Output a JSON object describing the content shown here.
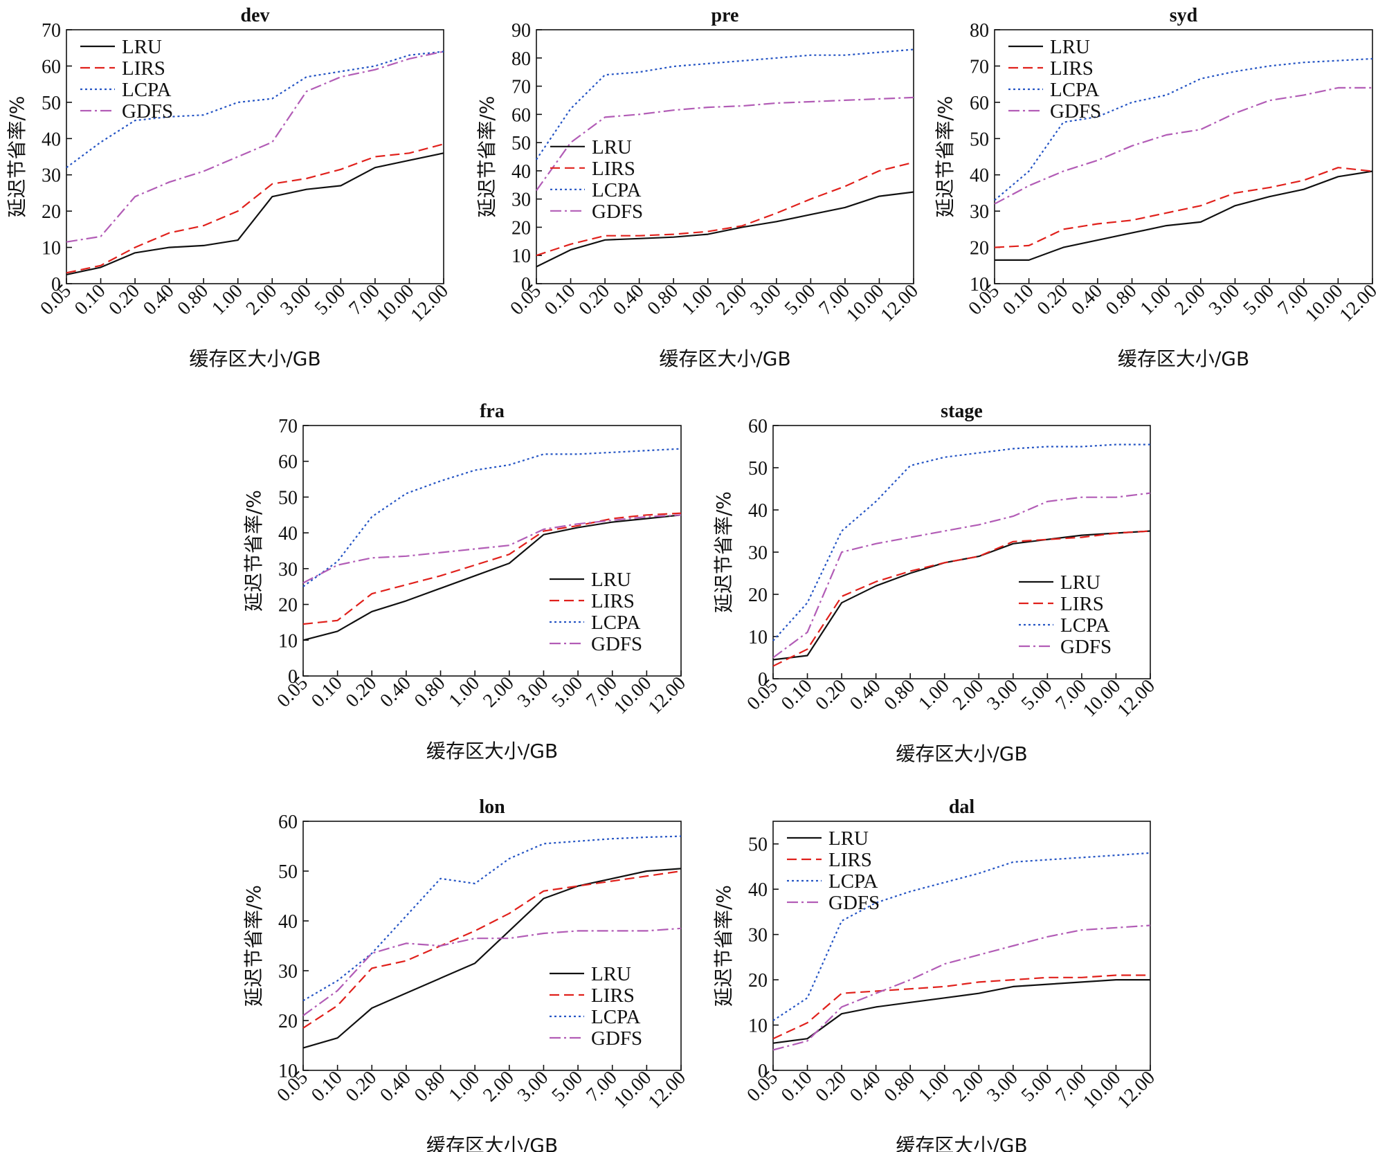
{
  "figure": {
    "x_ticks": [
      "0.05",
      "0.10",
      "0.20",
      "0.40",
      "0.80",
      "1.00",
      "2.00",
      "3.00",
      "5.00",
      "7.00",
      "10.00",
      "12.00"
    ],
    "xlabel": "缓存区大小/GB",
    "ylabel": "延迟节省率/%",
    "colors": {
      "LRU": "#111111",
      "LIRS": "#e0201b",
      "LCPA": "#2454c4",
      "GDFS": "#b25cb6"
    },
    "dash": {
      "LRU": "",
      "LIRS": "14,7",
      "LCPA": "3,4",
      "GDFS": "16,5,3,5"
    }
  },
  "chart_data": [
    {
      "type": "line",
      "title": "dev",
      "xlabel": "缓存区大小/GB",
      "ylabel": "延迟节省率/%",
      "ylim": [
        0,
        70
      ],
      "yticks": [
        "0",
        "10",
        "20",
        "30",
        "40",
        "50",
        "60",
        "70"
      ],
      "legend": "top-left",
      "series": [
        {
          "name": "LRU",
          "values": [
            2.5,
            4.5,
            8.5,
            10,
            10.5,
            12,
            24,
            26,
            27,
            32,
            34,
            36
          ]
        },
        {
          "name": "LIRS",
          "values": [
            3,
            5,
            10,
            14,
            16,
            20,
            27.5,
            29,
            31.5,
            35,
            36,
            38.5
          ]
        },
        {
          "name": "LCPA",
          "values": [
            32,
            39,
            45,
            46,
            46.5,
            50,
            51,
            57,
            58.5,
            60,
            63,
            64
          ]
        },
        {
          "name": "GDFS",
          "values": [
            11.5,
            13,
            24,
            28,
            31,
            35,
            39,
            53,
            57,
            59,
            62,
            64
          ]
        }
      ]
    },
    {
      "type": "line",
      "title": "pre",
      "xlabel": "缓存区大小/GB",
      "ylabel": "延迟节省率/%",
      "ylim": [
        0,
        90
      ],
      "yticks": [
        "0",
        "10",
        "20",
        "30",
        "40",
        "50",
        "60",
        "70",
        "80",
        "90"
      ],
      "legend": "center-left",
      "series": [
        {
          "name": "LRU",
          "values": [
            6,
            12,
            15.5,
            16,
            16.5,
            17.5,
            20,
            22,
            24.5,
            27,
            31,
            32.5
          ]
        },
        {
          "name": "LIRS",
          "values": [
            10,
            14,
            17,
            17,
            17.5,
            18.5,
            20.5,
            25,
            30,
            34.5,
            40,
            43
          ]
        },
        {
          "name": "LCPA",
          "values": [
            44,
            62,
            74,
            75,
            77,
            78,
            79,
            80,
            81,
            81,
            82,
            83
          ]
        },
        {
          "name": "GDFS",
          "values": [
            33,
            50,
            59,
            60,
            61.5,
            62.5,
            63,
            64,
            64.5,
            65,
            65.5,
            66
          ]
        }
      ]
    },
    {
      "type": "line",
      "title": "syd",
      "xlabel": "缓存区大小/GB",
      "ylabel": "延迟节省率/%",
      "ylim": [
        10,
        80
      ],
      "yticks": [
        "10",
        "20",
        "30",
        "40",
        "50",
        "60",
        "70",
        "80"
      ],
      "legend": "top-left",
      "series": [
        {
          "name": "LRU",
          "values": [
            16.5,
            16.5,
            20,
            22,
            24,
            26,
            27,
            31.5,
            34,
            36,
            39.5,
            41
          ]
        },
        {
          "name": "LIRS",
          "values": [
            20,
            20.5,
            25,
            26.5,
            27.5,
            29.5,
            31.5,
            35,
            36.5,
            38.5,
            42,
            41
          ]
        },
        {
          "name": "LCPA",
          "values": [
            33,
            41,
            54.5,
            56,
            60,
            62,
            66.5,
            68.5,
            70,
            71,
            71.5,
            72
          ]
        },
        {
          "name": "GDFS",
          "values": [
            32,
            37,
            41,
            44,
            48,
            51,
            52.5,
            57,
            60.5,
            62,
            64,
            64
          ]
        }
      ]
    },
    {
      "type": "line",
      "title": "fra",
      "xlabel": "缓存区大小/GB",
      "ylabel": "延迟节省率/%",
      "ylim": [
        0,
        70
      ],
      "yticks": [
        "0",
        "10",
        "20",
        "30",
        "40",
        "50",
        "60",
        "70"
      ],
      "legend": "bottom-right",
      "series": [
        {
          "name": "LRU",
          "values": [
            10,
            12.5,
            18,
            21,
            24.5,
            28,
            31.5,
            39.5,
            41.5,
            43,
            44,
            45
          ]
        },
        {
          "name": "LIRS",
          "values": [
            14.5,
            15.5,
            23,
            25.5,
            28,
            31,
            34,
            40.5,
            42,
            44,
            45,
            45.5
          ]
        },
        {
          "name": "LCPA",
          "values": [
            25,
            32,
            44.5,
            51,
            54.5,
            57.5,
            59,
            62,
            62,
            62.5,
            63,
            63.5
          ]
        },
        {
          "name": "GDFS",
          "values": [
            26,
            31,
            33,
            33.5,
            34.5,
            35.5,
            36.5,
            41,
            42.5,
            43.5,
            44.5,
            45
          ]
        }
      ]
    },
    {
      "type": "line",
      "title": "stage",
      "xlabel": "缓存区大小/GB",
      "ylabel": "延迟节省率/%",
      "ylim": [
        0,
        60
      ],
      "yticks": [
        "0",
        "10",
        "20",
        "30",
        "40",
        "50",
        "60"
      ],
      "legend": "bottom-right",
      "series": [
        {
          "name": "LRU",
          "values": [
            4.5,
            5.5,
            18,
            22,
            25,
            27.5,
            29,
            32,
            33,
            34,
            34.5,
            35
          ]
        },
        {
          "name": "LIRS",
          "values": [
            3,
            7,
            19.5,
            23,
            25.5,
            27.5,
            29,
            32.5,
            33,
            33.5,
            34.5,
            35
          ]
        },
        {
          "name": "LCPA",
          "values": [
            9,
            18,
            35,
            42,
            50.5,
            52.5,
            53.5,
            54.5,
            55,
            55,
            55.5,
            55.5
          ]
        },
        {
          "name": "GDFS",
          "values": [
            5,
            11,
            30,
            32,
            33.5,
            35,
            36.5,
            38.5,
            42,
            43,
            43,
            44
          ]
        }
      ]
    },
    {
      "type": "line",
      "title": "lon",
      "xlabel": "缓存区大小/GB",
      "ylabel": "延迟节省率/%",
      "ylim": [
        10,
        60
      ],
      "yticks": [
        "10",
        "20",
        "30",
        "40",
        "50",
        "60"
      ],
      "legend": "bottom-right",
      "series": [
        {
          "name": "LRU",
          "values": [
            14.5,
            16.5,
            22.5,
            25.5,
            28.5,
            31.5,
            38,
            44.5,
            47,
            48.5,
            50,
            50.5
          ]
        },
        {
          "name": "LIRS",
          "values": [
            18.5,
            23,
            30.5,
            32,
            35,
            38,
            41.5,
            46,
            47,
            48,
            49,
            50
          ]
        },
        {
          "name": "LCPA",
          "values": [
            24,
            28,
            33.5,
            41,
            48.5,
            47.5,
            52.5,
            55.5,
            56,
            56.5,
            56.8,
            57
          ]
        },
        {
          "name": "GDFS",
          "values": [
            21,
            26,
            33.5,
            35.5,
            35,
            36.5,
            36.5,
            37.5,
            38,
            38,
            38,
            38.5
          ]
        }
      ]
    },
    {
      "type": "line",
      "title": "dal",
      "xlabel": "缓存区大小/GB",
      "ylabel": "延迟节省率/%",
      "ylim": [
        0,
        55
      ],
      "yticks": [
        "0",
        "10",
        "20",
        "30",
        "40",
        "50"
      ],
      "legend": "top-left",
      "series": [
        {
          "name": "LRU",
          "values": [
            6,
            7,
            12.5,
            14,
            15,
            16,
            17,
            18.5,
            19,
            19.5,
            20,
            20
          ]
        },
        {
          "name": "LIRS",
          "values": [
            7,
            10.5,
            17,
            17.5,
            18,
            18.5,
            19.5,
            20,
            20.5,
            20.5,
            21,
            21
          ]
        },
        {
          "name": "LCPA",
          "values": [
            11,
            16,
            33,
            37,
            39.5,
            41.5,
            43.5,
            46,
            46.5,
            47,
            47.5,
            48
          ]
        },
        {
          "name": "GDFS",
          "values": [
            4.5,
            6.5,
            14,
            17,
            20,
            23.5,
            25.5,
            27.5,
            29.5,
            31,
            31.5,
            32
          ]
        }
      ]
    }
  ]
}
